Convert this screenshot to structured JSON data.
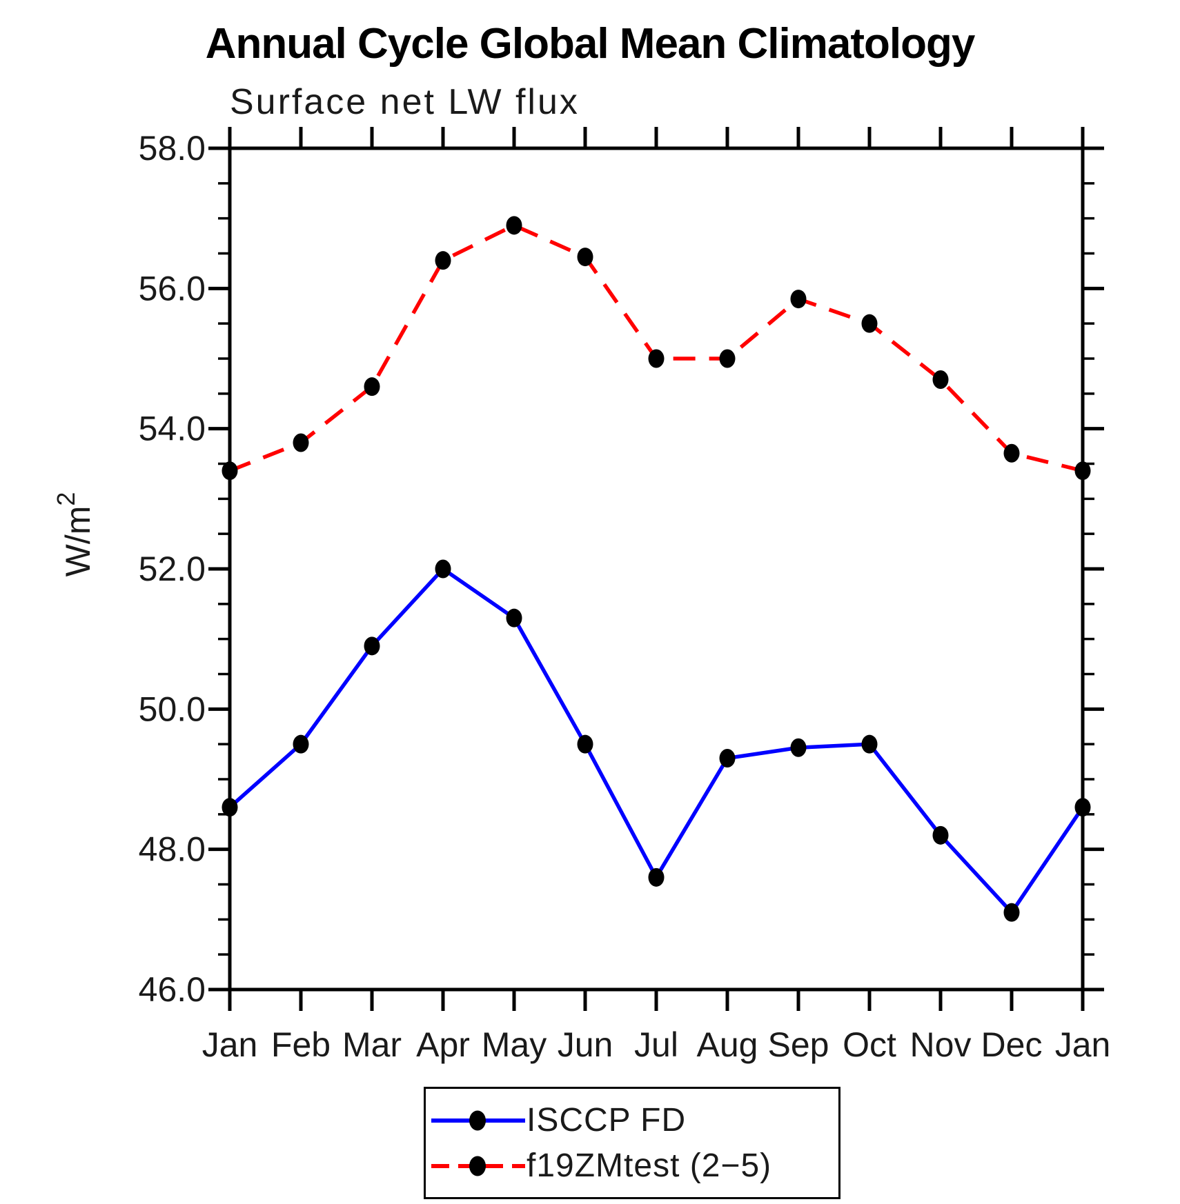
{
  "page": {
    "background": "#ffffff"
  },
  "chart_data": {
    "type": "line",
    "title": "Annual Cycle Global Mean Climatology",
    "subtitle": "Surface net LW flux",
    "ylabel_base": "W/m",
    "ylabel_exponent": "2",
    "x_tick_labels": [
      "Jan",
      "Feb",
      "Mar",
      "Apr",
      "May",
      "Jun",
      "Jul",
      "Aug",
      "Sep",
      "Oct",
      "Nov",
      "Dec",
      "Jan"
    ],
    "y_tick_labels": [
      "46.0",
      "48.0",
      "50.0",
      "52.0",
      "54.0",
      "56.0",
      "58.0"
    ],
    "ylim": [
      46.0,
      58.0
    ],
    "y_major_step": 2.0,
    "y_minor_step": 0.5,
    "grid": false,
    "legend_position": "bottom-center",
    "axis_color": "#000000",
    "marker_color": "#000000",
    "series": [
      {
        "name": "ISCCP FD",
        "color": "#0000ff",
        "style": "solid",
        "marker": "filled-circle",
        "values": [
          48.6,
          49.5,
          50.9,
          52.0,
          51.3,
          49.5,
          47.6,
          49.3,
          49.45,
          49.5,
          48.2,
          47.1,
          48.6
        ]
      },
      {
        "name": "f19ZMtest (2−5)",
        "color": "#ff0000",
        "style": "dashed",
        "marker": "filled-circle",
        "values": [
          53.4,
          53.8,
          54.6,
          56.4,
          56.9,
          56.45,
          55.0,
          55.0,
          55.85,
          55.5,
          54.7,
          53.65,
          53.4
        ]
      }
    ]
  }
}
